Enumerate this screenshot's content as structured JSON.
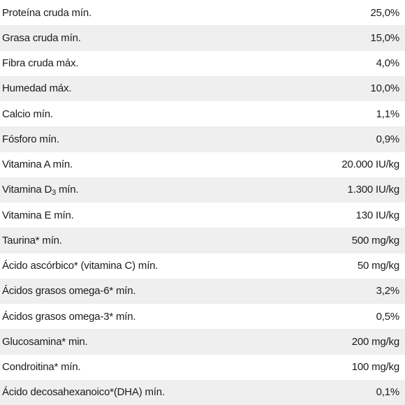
{
  "nutrition_table": {
    "rows": [
      {
        "label": "Proteína cruda mín.",
        "value": "25,0%"
      },
      {
        "label": "Grasa cruda mín.",
        "value": "15,0%"
      },
      {
        "label": "Fibra cruda máx.",
        "value": "4,0%"
      },
      {
        "label": "Humedad máx.",
        "value": "10,0%"
      },
      {
        "label": "Calcio mín.",
        "value": "1,1%"
      },
      {
        "label": "Fósforo mín.",
        "value": "0,9%"
      },
      {
        "label": "Vitamina A mín.",
        "value": "20.000 IU/kg"
      },
      {
        "label_pre": "Vitamina D",
        "label_sub": "3",
        "label_post": " mín.",
        "value": "1.300 IU/kg"
      },
      {
        "label": "Vitamina E mín.",
        "value": "130 IU/kg"
      },
      {
        "label": "Taurina* mín.",
        "value": "500 mg/kg"
      },
      {
        "label": "Ácido ascórbico* (vitamina C) mín.",
        "value": "50 mg/kg"
      },
      {
        "label": "Ácidos grasos omega-6* mín.",
        "value": "3,2%"
      },
      {
        "label": "Ácidos grasos omega-3* mín.",
        "value": "0,5%"
      },
      {
        "label": "Glucosamina* min.",
        "value": "200 mg/kg"
      },
      {
        "label": "Condroitina* mín.",
        "value": "100 mg/kg"
      },
      {
        "label": "Ácido decosahexanoico*(DHA) mín.",
        "value": "0,1%"
      }
    ]
  }
}
